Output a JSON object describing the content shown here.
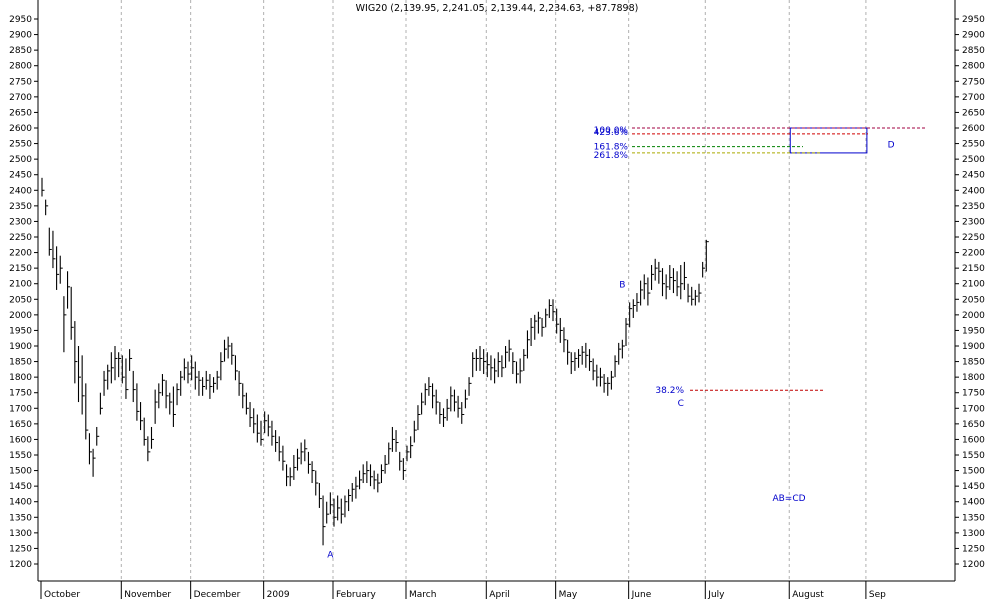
{
  "chart_data": {
    "type": "ohlc",
    "title": "WIG20 (2,139.95, 2,241.05, 2,139.44, 2,234.63, +87.7898)",
    "ylim": [
      1150,
      2980
    ],
    "yticks": [
      1200,
      1250,
      1300,
      1350,
      1400,
      1450,
      1500,
      1550,
      1600,
      1650,
      1700,
      1750,
      1800,
      1850,
      1900,
      1950,
      2000,
      2050,
      2100,
      2150,
      2200,
      2250,
      2300,
      2350,
      2400,
      2450,
      2500,
      2550,
      2600,
      2650,
      2700,
      2750,
      2800,
      2850,
      2900,
      2950
    ],
    "grid": "vertical-dashed-at-month-starts",
    "months": [
      {
        "label": "October",
        "bar": 0
      },
      {
        "label": "November",
        "bar": 22
      },
      {
        "label": "December",
        "bar": 41
      },
      {
        "label": "2009",
        "bar": 61
      },
      {
        "label": "February",
        "bar": 80
      },
      {
        "label": "March",
        "bar": 100
      },
      {
        "label": "April",
        "bar": 122
      },
      {
        "label": "May",
        "bar": 141
      },
      {
        "label": "June",
        "bar": 161
      },
      {
        "label": "July",
        "bar": 182
      },
      {
        "label": "August",
        "bar": 205
      },
      {
        "label": "Sep",
        "bar": 226
      }
    ],
    "bars": [
      [
        2440,
        2380,
        2400
      ],
      [
        2370,
        2320,
        2350
      ],
      [
        2280,
        2190,
        2210
      ],
      [
        2270,
        2150,
        2180
      ],
      [
        2220,
        2080,
        2130
      ],
      [
        2190,
        2100,
        2150
      ],
      [
        2060,
        1880,
        2000
      ],
      [
        2140,
        2020,
        2090
      ],
      [
        2090,
        1920,
        1960
      ],
      [
        1980,
        1780,
        1850
      ],
      [
        1900,
        1720,
        1800
      ],
      [
        1870,
        1680,
        1740
      ],
      [
        1780,
        1600,
        1630
      ],
      [
        1620,
        1520,
        1560
      ],
      [
        1570,
        1480,
        1540
      ],
      [
        1640,
        1580,
        1610
      ],
      [
        1750,
        1680,
        1700
      ],
      [
        1820,
        1740,
        1790
      ],
      [
        1840,
        1760,
        1820
      ],
      [
        1880,
        1780,
        1830
      ],
      [
        1900,
        1790,
        1860
      ],
      [
        1880,
        1800,
        1860
      ],
      [
        1870,
        1780,
        1800
      ],
      [
        1860,
        1730,
        1760
      ],
      [
        1890,
        1820,
        1860
      ],
      [
        1820,
        1720,
        1760
      ],
      [
        1780,
        1660,
        1690
      ],
      [
        1720,
        1630,
        1660
      ],
      [
        1670,
        1580,
        1600
      ],
      [
        1610,
        1530,
        1560
      ],
      [
        1640,
        1570,
        1600
      ],
      [
        1760,
        1650,
        1720
      ],
      [
        1780,
        1700,
        1750
      ],
      [
        1810,
        1740,
        1790
      ],
      [
        1790,
        1700,
        1740
      ],
      [
        1750,
        1680,
        1720
      ],
      [
        1770,
        1640,
        1680
      ],
      [
        1780,
        1710,
        1760
      ],
      [
        1820,
        1740,
        1800
      ],
      [
        1860,
        1790,
        1830
      ],
      [
        1850,
        1780,
        1810
      ],
      [
        1870,
        1790,
        1830
      ],
      [
        1850,
        1760,
        1800
      ],
      [
        1820,
        1740,
        1790
      ],
      [
        1800,
        1740,
        1770
      ],
      [
        1820,
        1760,
        1790
      ],
      [
        1810,
        1730,
        1770
      ],
      [
        1800,
        1750,
        1780
      ],
      [
        1820,
        1760,
        1800
      ],
      [
        1880,
        1790,
        1850
      ],
      [
        1920,
        1850,
        1890
      ],
      [
        1930,
        1860,
        1900
      ],
      [
        1910,
        1840,
        1870
      ],
      [
        1870,
        1790,
        1820
      ],
      [
        1820,
        1740,
        1780
      ],
      [
        1780,
        1700,
        1740
      ],
      [
        1750,
        1680,
        1700
      ],
      [
        1720,
        1640,
        1670
      ],
      [
        1700,
        1620,
        1650
      ],
      [
        1680,
        1590,
        1620
      ],
      [
        1660,
        1580,
        1600
      ],
      [
        1690,
        1620,
        1660
      ],
      [
        1680,
        1610,
        1640
      ],
      [
        1660,
        1580,
        1610
      ],
      [
        1630,
        1560,
        1590
      ],
      [
        1610,
        1530,
        1560
      ],
      [
        1580,
        1500,
        1530
      ],
      [
        1520,
        1450,
        1480
      ],
      [
        1510,
        1450,
        1480
      ],
      [
        1550,
        1470,
        1510
      ],
      [
        1570,
        1500,
        1540
      ],
      [
        1590,
        1520,
        1560
      ],
      [
        1600,
        1530,
        1570
      ],
      [
        1560,
        1490,
        1520
      ],
      [
        1530,
        1460,
        1500
      ],
      [
        1500,
        1420,
        1460
      ],
      [
        1460,
        1380,
        1410
      ],
      [
        1420,
        1260,
        1320
      ],
      [
        1400,
        1330,
        1360
      ],
      [
        1430,
        1360,
        1390
      ],
      [
        1410,
        1320,
        1350
      ],
      [
        1420,
        1340,
        1380
      ],
      [
        1410,
        1330,
        1360
      ],
      [
        1420,
        1350,
        1400
      ],
      [
        1440,
        1370,
        1420
      ],
      [
        1460,
        1400,
        1440
      ],
      [
        1480,
        1410,
        1450
      ],
      [
        1500,
        1440,
        1470
      ],
      [
        1520,
        1460,
        1490
      ],
      [
        1530,
        1460,
        1500
      ],
      [
        1520,
        1450,
        1480
      ],
      [
        1500,
        1440,
        1470
      ],
      [
        1490,
        1430,
        1460
      ],
      [
        1520,
        1460,
        1500
      ],
      [
        1550,
        1490,
        1520
      ],
      [
        1590,
        1520,
        1570
      ],
      [
        1640,
        1560,
        1600
      ],
      [
        1630,
        1560,
        1590
      ],
      [
        1560,
        1500,
        1530
      ],
      [
        1540,
        1470,
        1500
      ],
      [
        1580,
        1530,
        1560
      ],
      [
        1610,
        1540,
        1580
      ],
      [
        1660,
        1590,
        1630
      ],
      [
        1710,
        1630,
        1680
      ],
      [
        1750,
        1680,
        1720
      ],
      [
        1780,
        1710,
        1760
      ],
      [
        1800,
        1740,
        1770
      ],
      [
        1780,
        1700,
        1740
      ],
      [
        1760,
        1680,
        1720
      ],
      [
        1720,
        1650,
        1680
      ],
      [
        1700,
        1640,
        1670
      ],
      [
        1730,
        1660,
        1700
      ],
      [
        1770,
        1690,
        1740
      ],
      [
        1760,
        1690,
        1720
      ],
      [
        1740,
        1670,
        1700
      ],
      [
        1720,
        1650,
        1680
      ],
      [
        1760,
        1700,
        1730
      ],
      [
        1800,
        1740,
        1780
      ],
      [
        1880,
        1800,
        1860
      ],
      [
        1890,
        1820,
        1860
      ],
      [
        1900,
        1820,
        1860
      ],
      [
        1890,
        1810,
        1850
      ],
      [
        1880,
        1800,
        1840
      ],
      [
        1870,
        1790,
        1830
      ],
      [
        1860,
        1780,
        1820
      ],
      [
        1880,
        1800,
        1850
      ],
      [
        1870,
        1800,
        1830
      ],
      [
        1900,
        1830,
        1880
      ],
      [
        1920,
        1850,
        1890
      ],
      [
        1880,
        1810,
        1850
      ],
      [
        1850,
        1780,
        1810
      ],
      [
        1860,
        1780,
        1820
      ],
      [
        1890,
        1820,
        1870
      ],
      [
        1950,
        1860,
        1920
      ],
      [
        1990,
        1900,
        1960
      ],
      [
        2000,
        1920,
        1980
      ],
      [
        2010,
        1940,
        1990
      ],
      [
        1990,
        1930,
        1960
      ],
      [
        2020,
        1960,
        2000
      ],
      [
        2050,
        1990,
        2030
      ],
      [
        2050,
        1980,
        2010
      ],
      [
        2020,
        1940,
        1970
      ],
      [
        1990,
        1910,
        1950
      ],
      [
        1960,
        1880,
        1920
      ],
      [
        1920,
        1840,
        1880
      ],
      [
        1880,
        1810,
        1850
      ],
      [
        1880,
        1820,
        1860
      ],
      [
        1890,
        1830,
        1870
      ],
      [
        1900,
        1840,
        1880
      ],
      [
        1910,
        1830,
        1870
      ],
      [
        1890,
        1820,
        1850
      ],
      [
        1860,
        1790,
        1820
      ],
      [
        1840,
        1770,
        1800
      ],
      [
        1830,
        1770,
        1800
      ],
      [
        1810,
        1750,
        1780
      ],
      [
        1800,
        1740,
        1780
      ],
      [
        1820,
        1760,
        1800
      ],
      [
        1870,
        1800,
        1850
      ],
      [
        1910,
        1840,
        1890
      ],
      [
        1920,
        1860,
        1900
      ],
      [
        1990,
        1900,
        1970
      ],
      [
        2040,
        1960,
        2020
      ],
      [
        2050,
        1990,
        2030
      ],
      [
        2070,
        2010,
        2040
      ],
      [
        2110,
        2030,
        2080
      ],
      [
        2130,
        2050,
        2100
      ],
      [
        2120,
        2030,
        2070
      ],
      [
        2160,
        2080,
        2130
      ],
      [
        2180,
        2110,
        2150
      ],
      [
        2170,
        2100,
        2140
      ],
      [
        2150,
        2060,
        2100
      ],
      [
        2130,
        2050,
        2090
      ],
      [
        2160,
        2080,
        2120
      ],
      [
        2150,
        2070,
        2110
      ],
      [
        2140,
        2060,
        2090
      ],
      [
        2160,
        2050,
        2100
      ],
      [
        2170,
        2080,
        2120
      ],
      [
        2100,
        2040,
        2060
      ],
      [
        2090,
        2030,
        2050
      ],
      [
        2080,
        2030,
        2060
      ],
      [
        2100,
        2040,
        2070
      ],
      [
        2170,
        2120,
        2150
      ],
      [
        2241,
        2139,
        2235
      ]
    ],
    "fib_levels": [
      {
        "label": "100.0%",
        "value": 2600,
        "color": "#a00040"
      },
      {
        "label": "423.6%",
        "value": 2581,
        "color": "#d00000"
      },
      {
        "label": "161.8%",
        "value": 2540,
        "color": "#008000"
      },
      {
        "label": "261.8%",
        "value": 2520,
        "color": "#aaaa00"
      }
    ],
    "retracement": {
      "label": "38.2%",
      "value": 1758,
      "color": "#c00000"
    },
    "target_box": {
      "from_bar": 205,
      "to_bar": 226,
      "low": 2520,
      "high": 2600,
      "color": "#0000cc"
    },
    "points": [
      {
        "label": "A",
        "bar": 79,
        "value": 1260
      },
      {
        "label": "B",
        "bar": 159,
        "value": 2050
      },
      {
        "label": "C",
        "bar": 175,
        "value": 1758
      },
      {
        "label": "D",
        "bar": 234,
        "value": 2550
      }
    ],
    "note": "AB=CD"
  }
}
